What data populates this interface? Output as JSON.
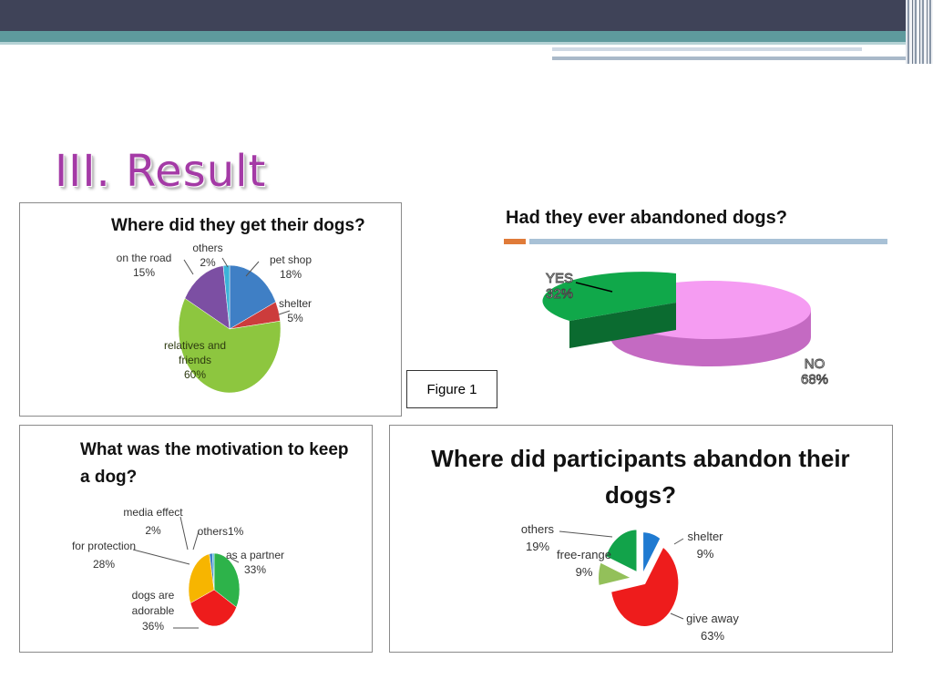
{
  "slide": {
    "title": "III. Result",
    "figure_label": "Figure 1"
  },
  "chart_data": [
    {
      "type": "pie",
      "title": "Where did they get their dogs?",
      "slices": [
        {
          "label": "pet shop",
          "value": 18,
          "value_label": "18%",
          "color": "#3f7fc5"
        },
        {
          "label": "shelter",
          "value": 5,
          "value_label": "5%",
          "color": "#cc3c3c"
        },
        {
          "label": "relatives and friends",
          "value": 60,
          "value_label": "60%",
          "color": "#8dc63f"
        },
        {
          "label": "on the road",
          "value": 15,
          "value_label": "15%",
          "color": "#7c4fa3"
        },
        {
          "label": "others",
          "value": 2,
          "value_label": "2%",
          "color": "#3bb3d9"
        }
      ]
    },
    {
      "type": "pie",
      "title": "Had they ever abandoned dogs?",
      "slices": [
        {
          "label": "YES",
          "value": 32,
          "value_label": "32%",
          "color": "#10a84a"
        },
        {
          "label": "NO",
          "value": 68,
          "value_label": "68%",
          "color": "#f59cf2"
        }
      ]
    },
    {
      "type": "pie",
      "title": "What was the motivation to keep a dog?",
      "slices": [
        {
          "label": "as a partner",
          "value": 33,
          "value_label": "33%",
          "color": "#2db34a"
        },
        {
          "label": "dogs are adorable",
          "value": 36,
          "value_label": "36%",
          "color": "#ee1c1c"
        },
        {
          "label": "for protection",
          "value": 28,
          "value_label": "28%",
          "color": "#f7b500"
        },
        {
          "label": "media effect",
          "value": 2,
          "value_label": "2%",
          "color": "#3f7fc5"
        },
        {
          "label": "others",
          "value": 1,
          "value_label": "others1%",
          "color": "#3bb3d9"
        }
      ]
    },
    {
      "type": "pie",
      "title": "Where did participants abandon their dogs?",
      "slices": [
        {
          "label": "shelter",
          "value": 9,
          "value_label": "9%",
          "color": "#1f7ad1"
        },
        {
          "label": "give away",
          "value": 63,
          "value_label": "63%",
          "color": "#ee1c1c"
        },
        {
          "label": "free-range",
          "value": 9,
          "value_label": "9%",
          "color": "#93c05a"
        },
        {
          "label": "others",
          "value": 19,
          "value_label": "19%",
          "color": "#12a34a"
        }
      ]
    }
  ]
}
